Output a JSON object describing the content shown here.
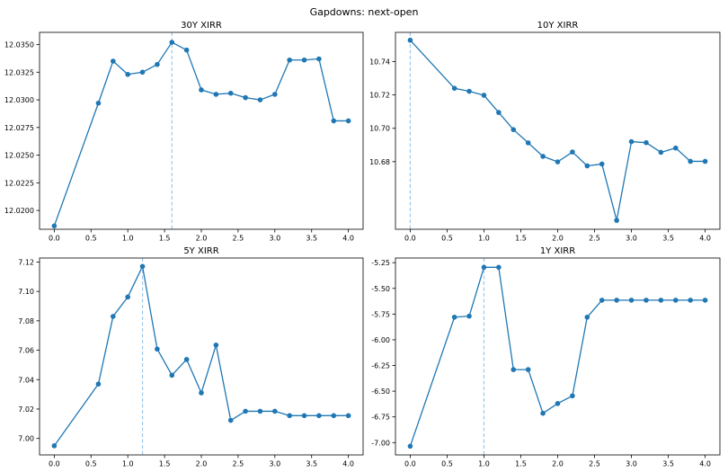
{
  "suptitle": "Gapdowns: next-open",
  "chart_data": [
    {
      "type": "line",
      "title": "30Y XIRR",
      "xlabel": "",
      "ylabel": "",
      "xlim": [
        -0.2,
        4.2
      ],
      "ylim": [
        12.0183,
        12.0361
      ],
      "xticks": [
        0.0,
        0.5,
        1.0,
        1.5,
        2.0,
        2.5,
        3.0,
        3.5,
        4.0
      ],
      "yticks": [
        12.02,
        12.0225,
        12.025,
        12.0275,
        12.03,
        12.0325,
        12.035
      ],
      "ytick_decimals": 4,
      "vline": 1.6,
      "series": [
        {
          "x": [
            0.0,
            0.6,
            0.8,
            1.0,
            1.2,
            1.4,
            1.6,
            1.8,
            2.0,
            2.2,
            2.4,
            2.6,
            2.8,
            3.0,
            3.2,
            3.4,
            3.6,
            3.8,
            4.0
          ],
          "values": [
            12.0186,
            12.0297,
            12.0335,
            12.0323,
            12.0325,
            12.0332,
            12.0352,
            12.0345,
            12.0309,
            12.0305,
            12.0306,
            12.0302,
            12.03,
            12.0305,
            12.0336,
            12.0336,
            12.0337,
            12.0281,
            12.0281
          ]
        }
      ]
    },
    {
      "type": "line",
      "title": "10Y XIRR",
      "xlabel": "",
      "ylabel": "",
      "xlim": [
        -0.2,
        4.2
      ],
      "ylim": [
        10.6395,
        10.7575
      ],
      "xticks": [
        0.0,
        0.5,
        1.0,
        1.5,
        2.0,
        2.5,
        3.0,
        3.5,
        4.0
      ],
      "yticks": [
        10.68,
        10.7,
        10.72,
        10.74
      ],
      "ytick_decimals": 2,
      "vline": 0.0,
      "series": [
        {
          "x": [
            0.0,
            0.6,
            0.8,
            1.0,
            1.2,
            1.4,
            1.6,
            1.8,
            2.0,
            2.2,
            2.4,
            2.6,
            2.8,
            3.0,
            3.2,
            3.4,
            3.6,
            3.8,
            4.0
          ],
          "values": [
            10.7528,
            10.724,
            10.7222,
            10.7198,
            10.7095,
            10.6992,
            10.6913,
            10.6832,
            10.6799,
            10.6858,
            10.6775,
            10.6786,
            10.6448,
            10.692,
            10.6914,
            10.6856,
            10.6882,
            10.6802,
            10.6802
          ]
        }
      ]
    },
    {
      "type": "line",
      "title": "5Y XIRR",
      "xlabel": "",
      "ylabel": "",
      "xlim": [
        -0.2,
        4.2
      ],
      "ylim": [
        6.9888,
        7.1227
      ],
      "xticks": [
        0.0,
        0.5,
        1.0,
        1.5,
        2.0,
        2.5,
        3.0,
        3.5,
        4.0
      ],
      "yticks": [
        7.0,
        7.02,
        7.04,
        7.06,
        7.08,
        7.1,
        7.12
      ],
      "ytick_decimals": 2,
      "vline": 1.2,
      "series": [
        {
          "x": [
            0.0,
            0.6,
            0.8,
            1.0,
            1.2,
            1.4,
            1.6,
            1.8,
            2.0,
            2.2,
            2.4,
            2.6,
            2.8,
            3.0,
            3.2,
            3.4,
            3.6,
            3.8,
            4.0
          ],
          "values": [
            6.995,
            7.037,
            7.083,
            7.0962,
            7.117,
            7.0608,
            7.043,
            7.0537,
            7.031,
            7.0635,
            7.0123,
            7.0185,
            7.0185,
            7.0185,
            7.0155,
            7.0155,
            7.0155,
            7.0155,
            7.0155
          ]
        }
      ]
    },
    {
      "type": "line",
      "title": "1Y XIRR",
      "xlabel": "",
      "ylabel": "",
      "xlim": [
        -0.2,
        4.2
      ],
      "ylim": [
        -7.1198,
        -5.2048
      ],
      "xticks": [
        0.0,
        0.5,
        1.0,
        1.5,
        2.0,
        2.5,
        3.0,
        3.5,
        4.0
      ],
      "yticks": [
        -7.0,
        -6.75,
        -6.5,
        -6.25,
        -6.0,
        -5.75,
        -5.5,
        -5.25
      ],
      "ytick_decimals": 2,
      "vline": 1.0,
      "series": [
        {
          "x": [
            0.0,
            0.6,
            0.8,
            1.0,
            1.2,
            1.4,
            1.6,
            1.8,
            2.0,
            2.2,
            2.4,
            2.6,
            2.8,
            3.0,
            3.2,
            3.4,
            3.6,
            3.8,
            4.0
          ],
          "values": [
            -7.035,
            -5.78,
            -5.77,
            -5.295,
            -5.295,
            -6.29,
            -6.29,
            -6.715,
            -6.62,
            -6.545,
            -5.78,
            -5.615,
            -5.615,
            -5.615,
            -5.615,
            -5.615,
            -5.615,
            -5.615,
            -5.615
          ]
        }
      ]
    }
  ],
  "colors": {
    "line": "#1f77b4",
    "vline": "#9ec9ea",
    "axis": "#000000"
  }
}
